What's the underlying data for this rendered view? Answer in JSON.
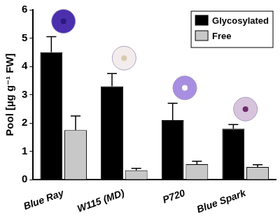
{
  "chart_data": {
    "type": "bar",
    "categories": [
      "Blue Ray",
      "W115 (MD)",
      "P720",
      "Blue Spark"
    ],
    "series": [
      {
        "name": "Glycosylated",
        "color": "#000000",
        "values": [
          4.5,
          3.3,
          2.1,
          1.8
        ],
        "errors": [
          0.55,
          0.45,
          0.6,
          0.15
        ]
      },
      {
        "name": "Free",
        "color": "#c8c8c8",
        "values": [
          1.75,
          0.33,
          0.55,
          0.45
        ],
        "errors": [
          0.5,
          0.07,
          0.1,
          0.08
        ]
      }
    ],
    "y_label": "Pool [µg g⁻¹ FW]",
    "ylim": [
      0,
      6
    ],
    "yticks": [
      0,
      1,
      2,
      3,
      4,
      5,
      6
    ],
    "grid": false,
    "legend": "upper right"
  }
}
